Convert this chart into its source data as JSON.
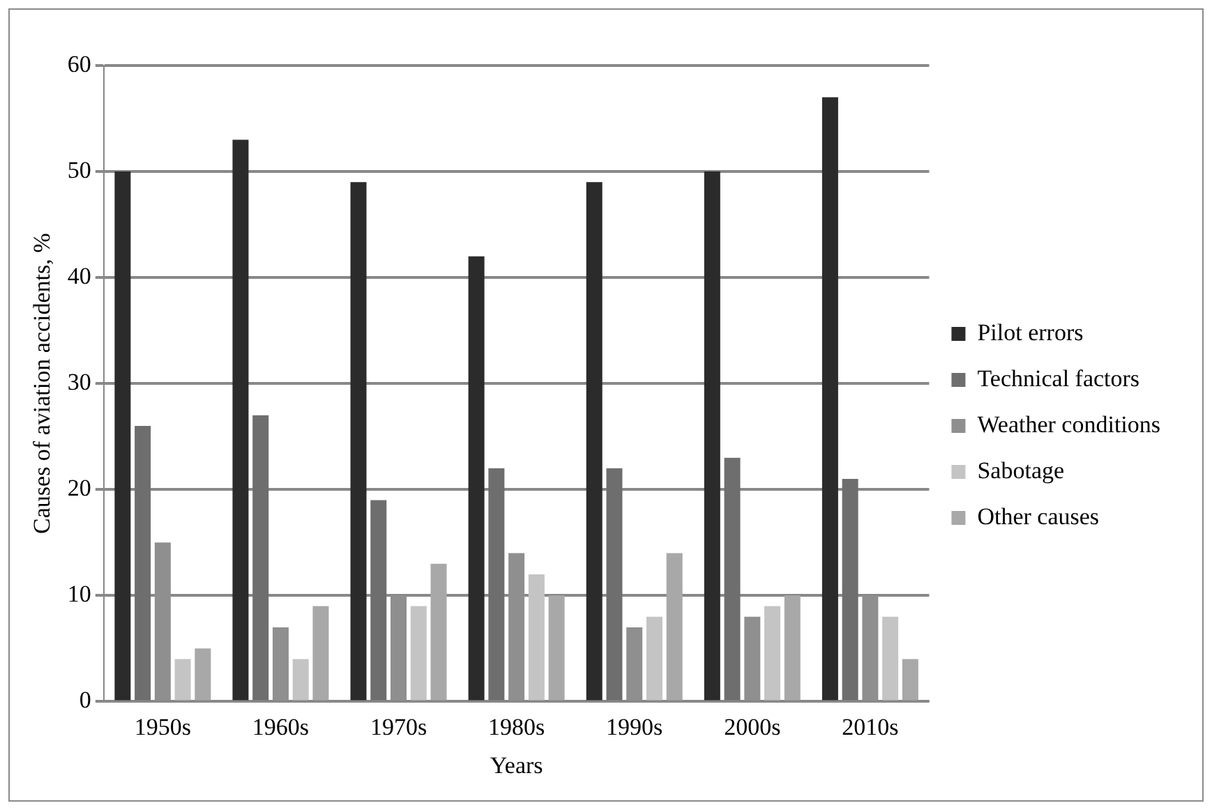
{
  "chart_data": {
    "type": "bar",
    "xlabel": "Years",
    "ylabel": "Causes of aviation accidents, %",
    "categories": [
      "1950s",
      "1960s",
      "1970s",
      "1980s",
      "1990s",
      "2000s",
      "2010s"
    ],
    "series": [
      {
        "name": "Pilot errors",
        "color": "#2b2b2b",
        "values": [
          50,
          53,
          49,
          42,
          49,
          50,
          57
        ]
      },
      {
        "name": "Technical factors",
        "color": "#6e6e6e",
        "values": [
          26,
          27,
          19,
          22,
          22,
          23,
          21
        ]
      },
      {
        "name": "Weather conditions",
        "color": "#8f8f8f",
        "values": [
          15,
          7,
          10,
          14,
          7,
          8,
          10
        ]
      },
      {
        "name": "Sabotage",
        "color": "#c4c4c4",
        "values": [
          4,
          4,
          9,
          12,
          8,
          9,
          8
        ]
      },
      {
        "name": "Other causes",
        "color": "#a8a8a8",
        "values": [
          5,
          9,
          13,
          10,
          14,
          10,
          4
        ]
      }
    ],
    "ylim": [
      0,
      60
    ],
    "yticks": [
      0,
      10,
      20,
      30,
      40,
      50,
      60
    ],
    "grid": "y",
    "legend": "right"
  }
}
